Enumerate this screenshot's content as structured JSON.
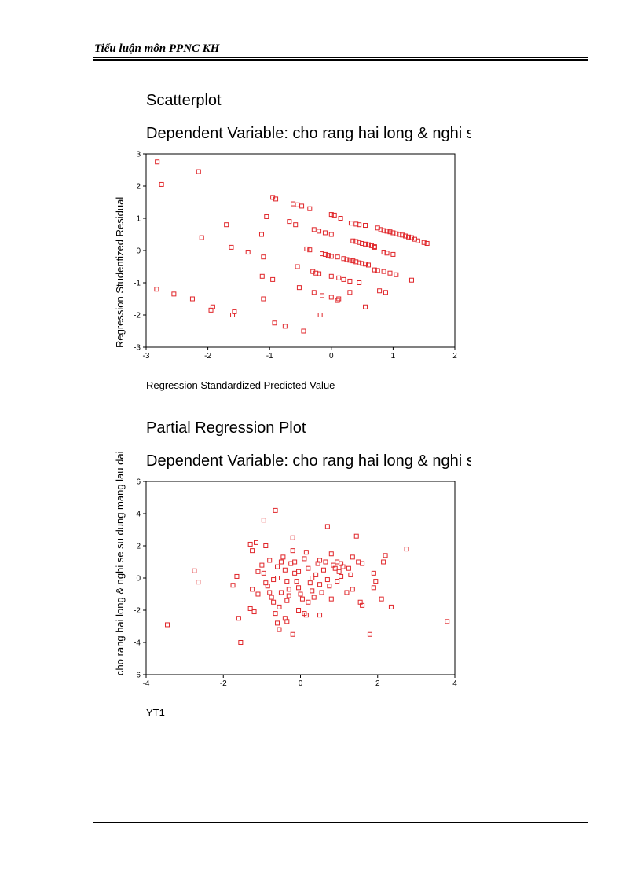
{
  "header": {
    "text": "Tiểu luận môn PPNC KH"
  },
  "chart_data": [
    {
      "type": "scatter",
      "title": "Scatterplot",
      "subtitle": "Dependent Variable: cho rang hai long & nghi se",
      "xlabel": "Regression Standardized Predicted Value",
      "ylabel": "Regression Studentized Residual",
      "xlim": [
        -3,
        2
      ],
      "ylim": [
        -3,
        3
      ],
      "xticks": [
        -3,
        -2,
        -1,
        0,
        1,
        2
      ],
      "yticks": [
        3,
        2,
        1,
        0,
        -1,
        -2,
        -3
      ],
      "marker_color": "#e0262a",
      "points": [
        [
          -2.82,
          2.75
        ],
        [
          -2.75,
          2.05
        ],
        [
          -2.15,
          2.45
        ],
        [
          -2.1,
          0.4
        ],
        [
          -2.83,
          -1.2
        ],
        [
          -2.55,
          -1.35
        ],
        [
          -2.25,
          -1.5
        ],
        [
          -1.92,
          -1.75
        ],
        [
          -1.95,
          -1.85
        ],
        [
          -1.7,
          0.8
        ],
        [
          -1.62,
          0.1
        ],
        [
          -1.57,
          -1.9
        ],
        [
          -1.6,
          -2.0
        ],
        [
          -1.35,
          -0.05
        ],
        [
          -1.13,
          0.5
        ],
        [
          -1.05,
          1.05
        ],
        [
          -1.1,
          -0.2
        ],
        [
          -1.12,
          -0.8
        ],
        [
          -1.1,
          -1.5
        ],
        [
          -0.95,
          1.65
        ],
        [
          -0.9,
          1.6
        ],
        [
          -0.95,
          -0.9
        ],
        [
          -0.92,
          -2.25
        ],
        [
          -0.75,
          -2.35
        ],
        [
          -0.68,
          0.9
        ],
        [
          -0.58,
          0.8
        ],
        [
          -0.55,
          -0.5
        ],
        [
          -0.52,
          -1.15
        ],
        [
          -0.45,
          -2.5
        ],
        [
          -0.62,
          1.45
        ],
        [
          -0.55,
          1.42
        ],
        [
          -0.48,
          1.38
        ],
        [
          -0.35,
          1.3
        ],
        [
          -0.28,
          0.65
        ],
        [
          -0.2,
          0.6
        ],
        [
          -0.1,
          0.55
        ],
        [
          -0.4,
          0.05
        ],
        [
          -0.35,
          0.02
        ],
        [
          -0.3,
          -0.65
        ],
        [
          -0.25,
          -0.7
        ],
        [
          -0.2,
          -0.72
        ],
        [
          -0.28,
          -1.3
        ],
        [
          -0.15,
          -1.4
        ],
        [
          -0.18,
          -2.0
        ],
        [
          0.0,
          1.12
        ],
        [
          0.05,
          1.1
        ],
        [
          0.15,
          1.0
        ],
        [
          0.0,
          0.5
        ],
        [
          -0.15,
          -0.1
        ],
        [
          -0.1,
          -0.12
        ],
        [
          -0.05,
          -0.15
        ],
        [
          0.0,
          -0.18
        ],
        [
          0.1,
          -0.2
        ],
        [
          0.2,
          -0.25
        ],
        [
          0.25,
          -0.28
        ],
        [
          0.3,
          -0.3
        ],
        [
          0.35,
          -0.32
        ],
        [
          0.4,
          -0.35
        ],
        [
          0.45,
          -0.38
        ],
        [
          0.5,
          -0.4
        ],
        [
          0.55,
          -0.42
        ],
        [
          0.6,
          -0.45
        ],
        [
          0.0,
          -0.8
        ],
        [
          0.12,
          -0.85
        ],
        [
          0.2,
          -0.9
        ],
        [
          0.3,
          -0.95
        ],
        [
          0.45,
          -1.0
        ],
        [
          0.12,
          -1.5
        ],
        [
          0.1,
          -1.55
        ],
        [
          0.0,
          -1.45
        ],
        [
          0.3,
          -1.3
        ],
        [
          0.55,
          -1.75
        ],
        [
          0.32,
          0.85
        ],
        [
          0.4,
          0.82
        ],
        [
          0.45,
          0.8
        ],
        [
          0.55,
          0.78
        ],
        [
          0.35,
          0.3
        ],
        [
          0.4,
          0.28
        ],
        [
          0.45,
          0.25
        ],
        [
          0.5,
          0.22
        ],
        [
          0.55,
          0.2
        ],
        [
          0.6,
          0.18
        ],
        [
          0.65,
          0.15
        ],
        [
          0.7,
          0.12
        ],
        [
          0.75,
          0.7
        ],
        [
          0.8,
          0.65
        ],
        [
          0.85,
          0.62
        ],
        [
          0.9,
          0.6
        ],
        [
          0.95,
          0.58
        ],
        [
          1.0,
          0.55
        ],
        [
          1.05,
          0.52
        ],
        [
          1.1,
          0.5
        ],
        [
          1.15,
          0.48
        ],
        [
          1.2,
          0.45
        ],
        [
          1.25,
          0.42
        ],
        [
          1.3,
          0.4
        ],
        [
          1.35,
          0.35
        ],
        [
          1.4,
          0.3
        ],
        [
          1.5,
          0.25
        ],
        [
          1.55,
          0.22
        ],
        [
          0.85,
          -0.05
        ],
        [
          0.9,
          -0.08
        ],
        [
          1.0,
          -0.12
        ],
        [
          0.7,
          -0.6
        ],
        [
          0.75,
          -0.62
        ],
        [
          0.85,
          -0.65
        ],
        [
          0.95,
          -0.7
        ],
        [
          1.05,
          -0.75
        ],
        [
          0.78,
          -1.25
        ],
        [
          0.88,
          -1.3
        ],
        [
          1.3,
          -0.92
        ],
        [
          0.7,
          0.1
        ]
      ]
    },
    {
      "type": "scatter",
      "title": "Partial Regression Plot",
      "subtitle": "Dependent Variable: cho rang hai long & nghi se",
      "xlabel": "YT1",
      "ylabel": "cho rang hai long & nghi se su dung mang lau dai",
      "xlim": [
        -4,
        4
      ],
      "ylim": [
        -6,
        6
      ],
      "xticks": [
        -4,
        -2,
        0,
        2,
        4
      ],
      "yticks": [
        6,
        4,
        2,
        0,
        -2,
        -4,
        -6
      ],
      "marker_color": "#e0262a",
      "points": [
        [
          -3.45,
          -2.9
        ],
        [
          -2.75,
          0.45
        ],
        [
          -2.65,
          -0.25
        ],
        [
          -1.65,
          0.1
        ],
        [
          -1.6,
          -2.5
        ],
        [
          -1.55,
          -4.0
        ],
        [
          -1.3,
          2.1
        ],
        [
          -1.25,
          1.7
        ],
        [
          -1.15,
          2.2
        ],
        [
          -1.1,
          0.4
        ],
        [
          -1.3,
          -1.9
        ],
        [
          -1.2,
          -2.1
        ],
        [
          -1.25,
          -0.7
        ],
        [
          -1.1,
          -1.0
        ],
        [
          -1.0,
          0.8
        ],
        [
          -0.95,
          0.3
        ],
        [
          -0.9,
          -0.3
        ],
        [
          -0.85,
          -0.5
        ],
        [
          -0.8,
          -0.9
        ],
        [
          -0.75,
          -1.2
        ],
        [
          -0.7,
          -1.5
        ],
        [
          -0.65,
          -2.2
        ],
        [
          -0.6,
          -2.8
        ],
        [
          -0.55,
          -3.2
        ],
        [
          -0.9,
          2.0
        ],
        [
          -0.95,
          3.6
        ],
        [
          -0.65,
          4.2
        ],
        [
          -0.6,
          0.7
        ],
        [
          -0.6,
          0.0
        ],
        [
          -0.7,
          -0.1
        ],
        [
          -0.5,
          1.0
        ],
        [
          -0.45,
          1.3
        ],
        [
          -0.4,
          0.5
        ],
        [
          -0.35,
          -0.2
        ],
        [
          -0.3,
          -0.7
        ],
        [
          -0.3,
          -1.1
        ],
        [
          -0.35,
          -1.4
        ],
        [
          -0.4,
          -2.5
        ],
        [
          -0.35,
          -2.7
        ],
        [
          -0.2,
          -3.5
        ],
        [
          -0.2,
          2.5
        ],
        [
          -0.2,
          1.7
        ],
        [
          -0.25,
          0.9
        ],
        [
          -0.15,
          0.3
        ],
        [
          -0.1,
          -0.2
        ],
        [
          -0.05,
          -0.6
        ],
        [
          0.0,
          -1.0
        ],
        [
          0.05,
          -1.3
        ],
        [
          -0.05,
          -2.0
        ],
        [
          0.1,
          -2.2
        ],
        [
          0.15,
          -2.3
        ],
        [
          0.1,
          1.2
        ],
        [
          0.15,
          1.6
        ],
        [
          0.2,
          0.6
        ],
        [
          0.25,
          -0.3
        ],
        [
          0.3,
          -0.8
        ],
        [
          0.35,
          -1.2
        ],
        [
          0.4,
          0.2
        ],
        [
          0.45,
          0.9
        ],
        [
          0.5,
          1.1
        ],
        [
          0.5,
          -0.4
        ],
        [
          0.5,
          -2.3
        ],
        [
          0.55,
          -0.9
        ],
        [
          0.6,
          0.5
        ],
        [
          0.65,
          1.0
        ],
        [
          0.7,
          3.2
        ],
        [
          0.7,
          -0.1
        ],
        [
          0.75,
          -0.5
        ],
        [
          0.8,
          1.5
        ],
        [
          0.8,
          -1.3
        ],
        [
          0.85,
          0.8
        ],
        [
          0.9,
          0.6
        ],
        [
          0.95,
          1.0
        ],
        [
          1.0,
          0.4
        ],
        [
          1.05,
          0.9
        ],
        [
          1.1,
          0.7
        ],
        [
          1.2,
          -0.9
        ],
        [
          1.3,
          0.2
        ],
        [
          1.35,
          1.3
        ],
        [
          1.35,
          -0.7
        ],
        [
          1.45,
          2.6
        ],
        [
          1.5,
          1.0
        ],
        [
          1.55,
          -1.5
        ],
        [
          1.6,
          -1.7
        ],
        [
          1.8,
          -3.5
        ],
        [
          1.9,
          -0.6
        ],
        [
          1.9,
          0.3
        ],
        [
          1.95,
          -0.2
        ],
        [
          2.1,
          -1.3
        ],
        [
          2.15,
          1.0
        ],
        [
          2.2,
          1.4
        ],
        [
          2.35,
          -1.8
        ],
        [
          2.75,
          1.8
        ],
        [
          3.8,
          -2.7
        ],
        [
          -1.75,
          -0.45
        ],
        [
          -0.5,
          -0.9
        ],
        [
          -0.05,
          0.4
        ],
        [
          0.3,
          0.0
        ],
        [
          1.25,
          0.6
        ],
        [
          1.6,
          0.9
        ],
        [
          -0.8,
          1.1
        ],
        [
          -0.55,
          -1.8
        ],
        [
          0.95,
          -0.2
        ],
        [
          0.2,
          -1.5
        ],
        [
          -0.15,
          1.0
        ],
        [
          1.05,
          0.1
        ]
      ]
    }
  ]
}
